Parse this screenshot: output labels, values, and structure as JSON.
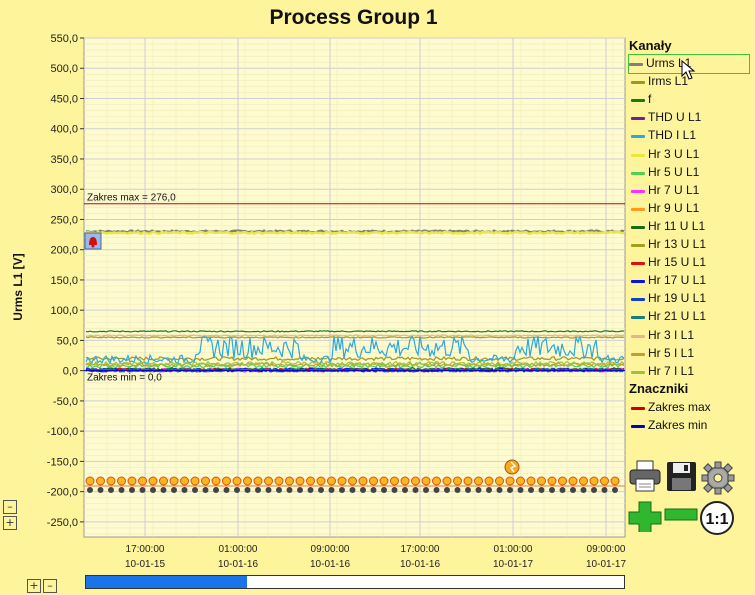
{
  "title": "Process Group 1",
  "colors": {
    "background": "#fdf49b",
    "plot_background": "#fffbd0",
    "max_line": "#cc0000",
    "min_line": "#0000cc"
  },
  "chart_data": {
    "type": "line",
    "title": "Process Group 1",
    "ylabel": "Urms L1 [V]",
    "xlabel": "",
    "ylim": [
      -275,
      550
    ],
    "y_ticks": [
      "550,0",
      "500,0",
      "450,0",
      "400,0",
      "350,0",
      "300,0",
      "250,0",
      "200,0",
      "150,0",
      "100,0",
      "50,0",
      "0,0",
      "-50,0",
      "-100,0",
      "-150,0",
      "-200,0",
      "-250,0"
    ],
    "y_tick_values": [
      550,
      500,
      450,
      400,
      350,
      300,
      250,
      200,
      150,
      100,
      50,
      0,
      -50,
      -100,
      -150,
      -200,
      -250
    ],
    "x_ticks": [
      {
        "time": "17:00:00",
        "date": "10-01-15"
      },
      {
        "time": "01:00:00",
        "date": "10-01-16"
      },
      {
        "time": "09:00:00",
        "date": "10-01-16"
      },
      {
        "time": "17:00:00",
        "date": "10-01-16"
      },
      {
        "time": "01:00:00",
        "date": "10-01-17"
      },
      {
        "time": "09:00:00",
        "date": "10-01-17"
      }
    ],
    "grid": true,
    "legend_position": "right",
    "series": [
      {
        "name": "Urms L1",
        "color": "#808080",
        "level": 230
      },
      {
        "name": "Irms L1",
        "color": "#9a9a1a",
        "level": 20
      },
      {
        "name": "f",
        "color": "#1a7a1a",
        "level": 65
      },
      {
        "name": "THD U L1",
        "color": "#7a1aa0",
        "level": 1
      },
      {
        "name": "THD I L1",
        "color": "#2aa8e0",
        "level": 30
      },
      {
        "name": "Hr 3 U L1",
        "color": "#e8e840",
        "level": 228
      },
      {
        "name": "Hr 5 U L1",
        "color": "#50d050",
        "level": 8
      },
      {
        "name": "Hr 7 U L1",
        "color": "#ff30ff",
        "level": 1
      },
      {
        "name": "Hr 9 U L1",
        "color": "#ff9a1a",
        "level": 1
      },
      {
        "name": "Hr 11 U L1",
        "color": "#1a6a1a",
        "level": 2
      },
      {
        "name": "Hr 13 U L1",
        "color": "#a0a020",
        "level": 55
      },
      {
        "name": "Hr 15 U L1",
        "color": "#e01010",
        "level": 1
      },
      {
        "name": "Hr 17 U L1",
        "color": "#1010e0",
        "level": 1
      },
      {
        "name": "Hr 19 U L1",
        "color": "#1040d0",
        "level": 1
      },
      {
        "name": "Hr 21 U L1",
        "color": "#108080",
        "level": 1
      },
      {
        "name": "Hr 3 I L1",
        "color": "#e0b890",
        "level": 58
      },
      {
        "name": "Hr 5 I L1",
        "color": "#c0a030",
        "level": 10
      },
      {
        "name": "Hr 7 I L1",
        "color": "#a0c040",
        "level": 12
      }
    ],
    "annotations": [
      {
        "label": "Zakres max = 276,0",
        "value": 276
      },
      {
        "label": "Zakres min = 0,0",
        "value": 0
      }
    ]
  },
  "legend": {
    "channels_title": "Kanały",
    "markers_title": "Znaczniki",
    "markers": [
      {
        "name": "Zakres max",
        "color": "#cc0000"
      },
      {
        "name": "Zakres min",
        "color": "#0000cc"
      }
    ]
  },
  "toolbar": {
    "zoom_reset_label": "1:1",
    "icons": [
      "printer-icon",
      "save-icon",
      "gear-icon",
      "zoom-in-icon",
      "zoom-out-icon"
    ]
  },
  "scrollbar": {
    "position": 0.3
  }
}
